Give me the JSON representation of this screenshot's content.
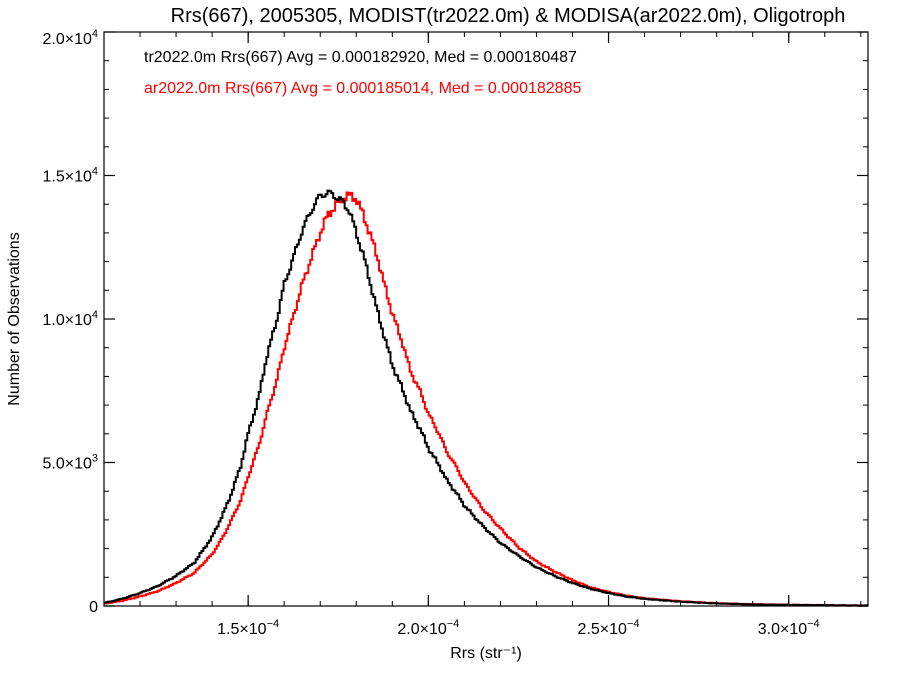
{
  "chart_data": {
    "type": "line",
    "title": "Rrs(667), 2005305, MODIST(tr2022.0m) & MODISA(ar2022.0m), Oligotroph",
    "xlabel": "Rrs (str⁻¹)",
    "ylabel": "Number of Observations",
    "xlim": [
      0.00011,
      0.000322
    ],
    "ylim": [
      0,
      20000
    ],
    "x_ticks": [
      0.00015,
      0.0002,
      0.00025,
      0.0003
    ],
    "x_tick_labels": [
      {
        "mant": "1.5×10",
        "exp": "−4"
      },
      {
        "mant": "2.0×10",
        "exp": "−4"
      },
      {
        "mant": "2.5×10",
        "exp": "−4"
      },
      {
        "mant": "3.0×10",
        "exp": "−4"
      }
    ],
    "y_ticks": [
      0,
      5000,
      10000,
      15000,
      20000
    ],
    "y_tick_labels": [
      {
        "mant": "0",
        "exp": ""
      },
      {
        "mant": "5.0×10",
        "exp": "3"
      },
      {
        "mant": "1.0×10",
        "exp": "4"
      },
      {
        "mant": "1.5×10",
        "exp": "4"
      },
      {
        "mant": "2.0×10",
        "exp": "4"
      }
    ],
    "annotations": [
      {
        "text": "tr2022.0m Rrs(667) Avg = 0.000182920, Med = 0.000180487",
        "color": "#000000"
      },
      {
        "text": "ar2022.0m Rrs(667) Avg = 0.000185014, Med = 0.000182885",
        "color": "#ff0000"
      }
    ],
    "series": [
      {
        "color": "#000000",
        "x": [
          0.00011,
          0.000115,
          0.00012,
          0.000125,
          0.00013,
          0.000135,
          0.00014,
          0.000143,
          0.000145,
          0.000148,
          0.00015,
          0.000153,
          0.000155,
          0.000158,
          0.00016,
          0.000163,
          0.000165,
          0.000168,
          0.00017,
          0.000172,
          0.000174,
          0.000176,
          0.000178,
          0.00018,
          0.000182,
          0.000184,
          0.000186,
          0.000188,
          0.00019,
          0.000193,
          0.000195,
          0.000198,
          0.0002,
          0.000203,
          0.000205,
          0.000208,
          0.00021,
          0.000215,
          0.00022,
          0.000225,
          0.00023,
          0.000235,
          0.00024,
          0.000245,
          0.00025,
          0.000255,
          0.00026,
          0.00027,
          0.00028,
          0.00029,
          0.0003,
          0.00031,
          0.000322
        ],
        "y": [
          100,
          250,
          450,
          700,
          1050,
          1500,
          2400,
          3200,
          3800,
          4900,
          6000,
          7300,
          8600,
          10000,
          11200,
          12300,
          13100,
          13900,
          14300,
          14400,
          14300,
          14100,
          13800,
          13000,
          12200,
          11200,
          10200,
          9300,
          8400,
          7500,
          6800,
          6100,
          5500,
          4900,
          4400,
          3900,
          3500,
          2800,
          2200,
          1750,
          1350,
          1050,
          800,
          600,
          450,
          330,
          250,
          150,
          90,
          55,
          40,
          25,
          15
        ]
      },
      {
        "color": "#ff0000",
        "x": [
          0.00011,
          0.000115,
          0.00012,
          0.000125,
          0.00013,
          0.000135,
          0.00014,
          0.000143,
          0.000145,
          0.000148,
          0.00015,
          0.000153,
          0.000155,
          0.000158,
          0.00016,
          0.000163,
          0.000165,
          0.000168,
          0.00017,
          0.000172,
          0.000174,
          0.000176,
          0.000178,
          0.00018,
          0.000182,
          0.000184,
          0.000186,
          0.000188,
          0.00019,
          0.000193,
          0.000195,
          0.000198,
          0.0002,
          0.000203,
          0.000205,
          0.000208,
          0.00021,
          0.000215,
          0.00022,
          0.000225,
          0.00023,
          0.000235,
          0.00024,
          0.000245,
          0.00025,
          0.000255,
          0.00026,
          0.00027,
          0.00028,
          0.00029,
          0.0003,
          0.00031,
          0.000322
        ],
        "y": [
          80,
          180,
          330,
          520,
          800,
          1150,
          1800,
          2400,
          2900,
          3700,
          4500,
          5600,
          6600,
          7900,
          9000,
          10300,
          11200,
          12300,
          13000,
          13600,
          13900,
          14200,
          14300,
          14200,
          13600,
          12900,
          12100,
          11100,
          10200,
          9100,
          8200,
          7400,
          6700,
          6000,
          5400,
          4800,
          4300,
          3400,
          2700,
          2050,
          1550,
          1200,
          900,
          650,
          490,
          360,
          270,
          165,
          95,
          60,
          40,
          25,
          15
        ]
      }
    ]
  }
}
